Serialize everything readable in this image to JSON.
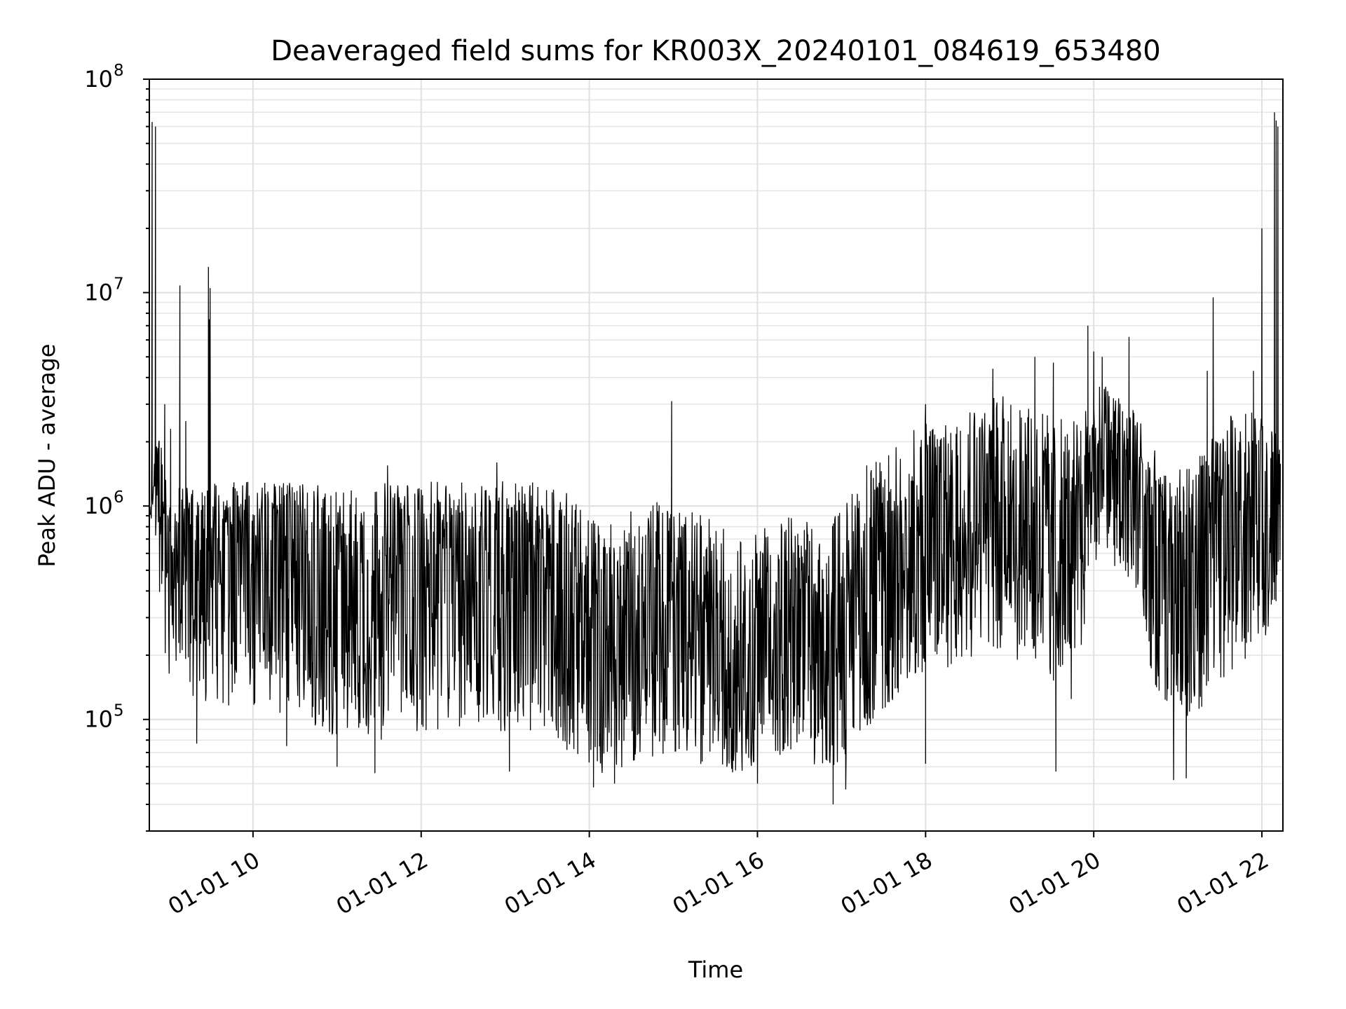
{
  "chart_data": {
    "type": "line",
    "title": "Deaveraged field sums for KR003X_20240101_084619_653480",
    "xlabel": "Time",
    "ylabel": "Peak ADU - average",
    "yscale": "log",
    "ylim": [
      30000,
      100000000
    ],
    "xlim": [
      "2024-01-01 08:46",
      "2024-01-01 22:15"
    ],
    "grid": true,
    "x_tick_labels": [
      "01-01 10",
      "01-01 12",
      "01-01 14",
      "01-01 16",
      "01-01 18",
      "01-01 20",
      "01-01 22"
    ],
    "x_tick_hours": [
      10,
      12,
      14,
      16,
      18,
      20,
      22
    ],
    "y_tick_labels": [
      {
        "base": "10",
        "exp": "5",
        "value": 100000
      },
      {
        "base": "10",
        "exp": "6",
        "value": 1000000
      },
      {
        "base": "10",
        "exp": "7",
        "value": 10000000
      },
      {
        "base": "10",
        "exp": "8",
        "value": 100000000
      }
    ],
    "series": [
      {
        "color": "#000000",
        "x_hours": [
          8.78,
          8.82,
          8.9,
          9.0,
          9.1,
          9.2,
          9.3,
          9.4,
          9.47,
          9.5,
          9.6,
          9.7,
          9.8,
          9.9,
          10.0,
          10.2,
          10.4,
          10.6,
          10.8,
          11.0,
          11.2,
          11.4,
          11.6,
          11.8,
          12.0,
          12.2,
          12.4,
          12.6,
          12.8,
          13.0,
          13.2,
          13.4,
          13.6,
          13.8,
          14.0,
          14.2,
          14.4,
          14.6,
          14.8,
          15.0,
          15.2,
          15.4,
          15.6,
          15.8,
          16.0,
          16.2,
          16.4,
          16.6,
          16.8,
          17.0,
          17.2,
          17.4,
          17.6,
          17.8,
          18.0,
          18.2,
          18.4,
          18.6,
          18.8,
          19.0,
          19.2,
          19.4,
          19.6,
          19.8,
          19.95,
          20.1,
          20.3,
          20.5,
          20.7,
          20.9,
          21.1,
          21.3,
          21.5,
          21.7,
          21.9,
          22.05,
          22.12,
          22.18,
          22.22
        ],
        "median": [
          1500000,
          1600000,
          1000000,
          450000,
          600000,
          700000,
          650000,
          600000,
          600000,
          650000,
          600000,
          550000,
          550000,
          500000,
          500000,
          550000,
          500000,
          450000,
          450000,
          420000,
          400000,
          380000,
          420000,
          480000,
          480000,
          500000,
          520000,
          550000,
          580000,
          550000,
          500000,
          450000,
          400000,
          350000,
          230000,
          200000,
          230000,
          280000,
          300000,
          300000,
          280000,
          250000,
          200000,
          170000,
          220000,
          270000,
          300000,
          280000,
          220000,
          280000,
          400000,
          500000,
          600000,
          650000,
          700000,
          800000,
          900000,
          1000000,
          1000000,
          900000,
          800000,
          700000,
          650000,
          600000,
          1500000,
          1700000,
          1600000,
          1300000,
          600000,
          450000,
          450000,
          550000,
          800000,
          1000000,
          1100000,
          1200000,
          1200000,
          1200000,
          1300000
        ],
        "lower": [
          800000,
          900000,
          300000,
          100000,
          150000,
          180000,
          120000,
          110000,
          110000,
          110000,
          110000,
          110000,
          110000,
          110000,
          110000,
          110000,
          100000,
          85000,
          85000,
          85000,
          80000,
          80000,
          80000,
          85000,
          85000,
          85000,
          90000,
          90000,
          90000,
          85000,
          85000,
          80000,
          75000,
          70000,
          60000,
          55000,
          60000,
          65000,
          65000,
          65000,
          65000,
          60000,
          58000,
          55000,
          60000,
          65000,
          70000,
          65000,
          55000,
          60000,
          80000,
          100000,
          120000,
          150000,
          160000,
          170000,
          180000,
          200000,
          200000,
          200000,
          170000,
          150000,
          140000,
          110000,
          500000,
          600000,
          500000,
          400000,
          150000,
          100000,
          100000,
          110000,
          130000,
          150000,
          200000,
          250000,
          300000,
          350000,
          400000
        ],
        "upper": [
          2600000,
          2600000,
          2200000,
          1100000,
          1200000,
          1300000,
          1200000,
          1300000,
          1200000,
          1300000,
          1300000,
          1300000,
          1300000,
          1300000,
          1300000,
          1300000,
          1300000,
          1300000,
          1300000,
          1250000,
          1250000,
          1250000,
          1300000,
          1300000,
          1300000,
          1300000,
          1300000,
          1300000,
          1400000,
          1350000,
          1300000,
          1300000,
          1250000,
          1100000,
          900000,
          850000,
          900000,
          1000000,
          1050000,
          1000000,
          950000,
          900000,
          800000,
          700000,
          750000,
          850000,
          900000,
          850000,
          800000,
          1000000,
          1300000,
          1600000,
          1900000,
          2200000,
          2500000,
          2700000,
          3000000,
          3200000,
          3300000,
          3300000,
          3000000,
          2800000,
          2600000,
          2500000,
          3500000,
          3800000,
          3500000,
          3000000,
          1900000,
          1500000,
          1500000,
          1800000,
          2500000,
          2800000,
          2800000,
          2600000,
          2500000,
          2400000,
          2200000
        ]
      }
    ],
    "spikes": [
      {
        "x_hours": 8.8,
        "value": 63000000
      },
      {
        "x_hours": 8.84,
        "value": 60000000
      },
      {
        "x_hours": 8.95,
        "value": 3000000
      },
      {
        "x_hours": 9.02,
        "value": 2300000
      },
      {
        "x_hours": 9.13,
        "value": 10800000
      },
      {
        "x_hours": 9.2,
        "value": 2500000
      },
      {
        "x_hours": 9.47,
        "value": 13200000
      },
      {
        "x_hours": 9.48,
        "value": 7500000
      },
      {
        "x_hours": 9.49,
        "value": 10500000
      },
      {
        "x_hours": 11.6,
        "value": 1550000
      },
      {
        "x_hours": 12.9,
        "value": 1600000
      },
      {
        "x_hours": 14.98,
        "value": 3100000
      },
      {
        "x_hours": 17.3,
        "value": 1550000
      },
      {
        "x_hours": 18.0,
        "value": 3000000
      },
      {
        "x_hours": 18.8,
        "value": 4400000
      },
      {
        "x_hours": 19.3,
        "value": 5000000
      },
      {
        "x_hours": 19.52,
        "value": 4700000
      },
      {
        "x_hours": 19.93,
        "value": 7000000
      },
      {
        "x_hours": 20.0,
        "value": 5300000
      },
      {
        "x_hours": 20.1,
        "value": 5000000
      },
      {
        "x_hours": 20.42,
        "value": 6200000
      },
      {
        "x_hours": 21.35,
        "value": 4300000
      },
      {
        "x_hours": 21.42,
        "value": 9500000
      },
      {
        "x_hours": 21.9,
        "value": 4300000
      },
      {
        "x_hours": 22.0,
        "value": 20000000
      },
      {
        "x_hours": 22.15,
        "value": 70000000
      },
      {
        "x_hours": 22.17,
        "value": 64000000
      },
      {
        "x_hours": 22.19,
        "value": 60000000
      }
    ],
    "dips": [
      {
        "x_hours": 9.33,
        "value": 77000
      },
      {
        "x_hours": 10.4,
        "value": 75000
      },
      {
        "x_hours": 11.0,
        "value": 60000
      },
      {
        "x_hours": 11.45,
        "value": 56000
      },
      {
        "x_hours": 13.05,
        "value": 57000
      },
      {
        "x_hours": 14.05,
        "value": 48000
      },
      {
        "x_hours": 14.3,
        "value": 50000
      },
      {
        "x_hours": 16.0,
        "value": 50000
      },
      {
        "x_hours": 16.9,
        "value": 40000
      },
      {
        "x_hours": 17.05,
        "value": 47000
      },
      {
        "x_hours": 18.0,
        "value": 62000
      },
      {
        "x_hours": 19.55,
        "value": 57000
      },
      {
        "x_hours": 20.95,
        "value": 52000
      },
      {
        "x_hours": 21.1,
        "value": 53000
      }
    ]
  }
}
